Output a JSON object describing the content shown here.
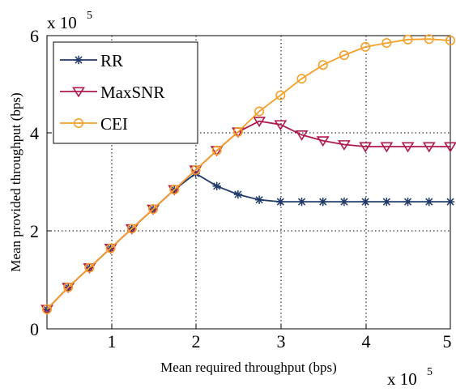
{
  "chart_data": {
    "type": "line",
    "title": "",
    "xlabel": "Mean required throughput (bps)",
    "ylabel": "Mean provided throughput (bps)",
    "x_multiplier": {
      "base": "x 10",
      "exp": "5"
    },
    "y_multiplier": {
      "base": "x 10",
      "exp": "5"
    },
    "xlim": [
      25000,
      500000
    ],
    "ylim": [
      0,
      600000
    ],
    "x_ticks": [
      100000,
      200000,
      300000,
      400000,
      500000
    ],
    "x_tick_labels": [
      "1",
      "2",
      "3",
      "4",
      "5"
    ],
    "y_ticks": [
      0,
      200000,
      400000,
      600000
    ],
    "y_tick_labels": [
      "0",
      "2",
      "4",
      "6"
    ],
    "grid": true,
    "legend": "top-left",
    "x": [
      25000,
      50000,
      75000,
      100000,
      125000,
      150000,
      175000,
      200000,
      225000,
      250000,
      275000,
      300000,
      325000,
      350000,
      375000,
      400000,
      425000,
      450000,
      475000,
      500000
    ],
    "series": [
      {
        "name": "RR",
        "color": "#1f3a6b",
        "marker": "asterisk",
        "values": [
          40000,
          85000,
          125000,
          165000,
          205000,
          245000,
          285000,
          318000,
          292000,
          275000,
          264000,
          260000,
          260000,
          260000,
          260000,
          260000,
          260000,
          260000,
          260000,
          260000
        ]
      },
      {
        "name": "MaxSNR",
        "color": "#b0194c",
        "marker": "triangle-down",
        "values": [
          40000,
          85000,
          125000,
          165000,
          205000,
          245000,
          285000,
          325000,
          365000,
          403000,
          425000,
          418000,
          397000,
          385000,
          377000,
          373000,
          373000,
          373000,
          373000,
          373000
        ]
      },
      {
        "name": "CEI",
        "color": "#f5a02a",
        "marker": "circle",
        "values": [
          40000,
          85000,
          125000,
          165000,
          205000,
          245000,
          285000,
          325000,
          365000,
          403000,
          445000,
          478000,
          512000,
          540000,
          560000,
          577000,
          585000,
          592000,
          593000,
          590000
        ]
      }
    ]
  }
}
